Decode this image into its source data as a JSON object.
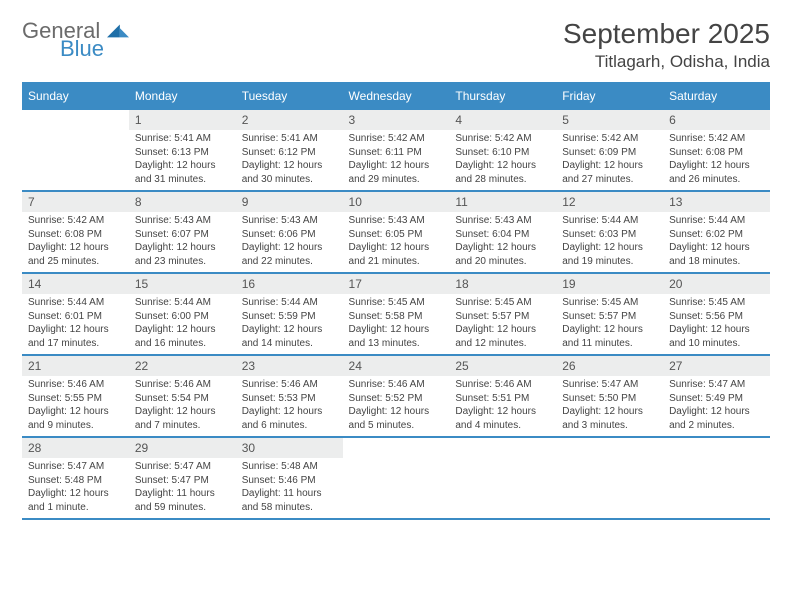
{
  "brand": {
    "line1": "General",
    "line2": "Blue"
  },
  "title": "September 2025",
  "location": "Titlagarh, Odisha, India",
  "colors": {
    "accent": "#3b8bc4",
    "daynum_bg": "#eceded",
    "text": "#444444"
  },
  "weekdays": [
    "Sunday",
    "Monday",
    "Tuesday",
    "Wednesday",
    "Thursday",
    "Friday",
    "Saturday"
  ],
  "weeks": [
    [
      {
        "n": "",
        "sr": "",
        "ss": "",
        "dl": ""
      },
      {
        "n": "1",
        "sr": "Sunrise: 5:41 AM",
        "ss": "Sunset: 6:13 PM",
        "dl": "Daylight: 12 hours and 31 minutes."
      },
      {
        "n": "2",
        "sr": "Sunrise: 5:41 AM",
        "ss": "Sunset: 6:12 PM",
        "dl": "Daylight: 12 hours and 30 minutes."
      },
      {
        "n": "3",
        "sr": "Sunrise: 5:42 AM",
        "ss": "Sunset: 6:11 PM",
        "dl": "Daylight: 12 hours and 29 minutes."
      },
      {
        "n": "4",
        "sr": "Sunrise: 5:42 AM",
        "ss": "Sunset: 6:10 PM",
        "dl": "Daylight: 12 hours and 28 minutes."
      },
      {
        "n": "5",
        "sr": "Sunrise: 5:42 AM",
        "ss": "Sunset: 6:09 PM",
        "dl": "Daylight: 12 hours and 27 minutes."
      },
      {
        "n": "6",
        "sr": "Sunrise: 5:42 AM",
        "ss": "Sunset: 6:08 PM",
        "dl": "Daylight: 12 hours and 26 minutes."
      }
    ],
    [
      {
        "n": "7",
        "sr": "Sunrise: 5:42 AM",
        "ss": "Sunset: 6:08 PM",
        "dl": "Daylight: 12 hours and 25 minutes."
      },
      {
        "n": "8",
        "sr": "Sunrise: 5:43 AM",
        "ss": "Sunset: 6:07 PM",
        "dl": "Daylight: 12 hours and 23 minutes."
      },
      {
        "n": "9",
        "sr": "Sunrise: 5:43 AM",
        "ss": "Sunset: 6:06 PM",
        "dl": "Daylight: 12 hours and 22 minutes."
      },
      {
        "n": "10",
        "sr": "Sunrise: 5:43 AM",
        "ss": "Sunset: 6:05 PM",
        "dl": "Daylight: 12 hours and 21 minutes."
      },
      {
        "n": "11",
        "sr": "Sunrise: 5:43 AM",
        "ss": "Sunset: 6:04 PM",
        "dl": "Daylight: 12 hours and 20 minutes."
      },
      {
        "n": "12",
        "sr": "Sunrise: 5:44 AM",
        "ss": "Sunset: 6:03 PM",
        "dl": "Daylight: 12 hours and 19 minutes."
      },
      {
        "n": "13",
        "sr": "Sunrise: 5:44 AM",
        "ss": "Sunset: 6:02 PM",
        "dl": "Daylight: 12 hours and 18 minutes."
      }
    ],
    [
      {
        "n": "14",
        "sr": "Sunrise: 5:44 AM",
        "ss": "Sunset: 6:01 PM",
        "dl": "Daylight: 12 hours and 17 minutes."
      },
      {
        "n": "15",
        "sr": "Sunrise: 5:44 AM",
        "ss": "Sunset: 6:00 PM",
        "dl": "Daylight: 12 hours and 16 minutes."
      },
      {
        "n": "16",
        "sr": "Sunrise: 5:44 AM",
        "ss": "Sunset: 5:59 PM",
        "dl": "Daylight: 12 hours and 14 minutes."
      },
      {
        "n": "17",
        "sr": "Sunrise: 5:45 AM",
        "ss": "Sunset: 5:58 PM",
        "dl": "Daylight: 12 hours and 13 minutes."
      },
      {
        "n": "18",
        "sr": "Sunrise: 5:45 AM",
        "ss": "Sunset: 5:57 PM",
        "dl": "Daylight: 12 hours and 12 minutes."
      },
      {
        "n": "19",
        "sr": "Sunrise: 5:45 AM",
        "ss": "Sunset: 5:57 PM",
        "dl": "Daylight: 12 hours and 11 minutes."
      },
      {
        "n": "20",
        "sr": "Sunrise: 5:45 AM",
        "ss": "Sunset: 5:56 PM",
        "dl": "Daylight: 12 hours and 10 minutes."
      }
    ],
    [
      {
        "n": "21",
        "sr": "Sunrise: 5:46 AM",
        "ss": "Sunset: 5:55 PM",
        "dl": "Daylight: 12 hours and 9 minutes."
      },
      {
        "n": "22",
        "sr": "Sunrise: 5:46 AM",
        "ss": "Sunset: 5:54 PM",
        "dl": "Daylight: 12 hours and 7 minutes."
      },
      {
        "n": "23",
        "sr": "Sunrise: 5:46 AM",
        "ss": "Sunset: 5:53 PM",
        "dl": "Daylight: 12 hours and 6 minutes."
      },
      {
        "n": "24",
        "sr": "Sunrise: 5:46 AM",
        "ss": "Sunset: 5:52 PM",
        "dl": "Daylight: 12 hours and 5 minutes."
      },
      {
        "n": "25",
        "sr": "Sunrise: 5:46 AM",
        "ss": "Sunset: 5:51 PM",
        "dl": "Daylight: 12 hours and 4 minutes."
      },
      {
        "n": "26",
        "sr": "Sunrise: 5:47 AM",
        "ss": "Sunset: 5:50 PM",
        "dl": "Daylight: 12 hours and 3 minutes."
      },
      {
        "n": "27",
        "sr": "Sunrise: 5:47 AM",
        "ss": "Sunset: 5:49 PM",
        "dl": "Daylight: 12 hours and 2 minutes."
      }
    ],
    [
      {
        "n": "28",
        "sr": "Sunrise: 5:47 AM",
        "ss": "Sunset: 5:48 PM",
        "dl": "Daylight: 12 hours and 1 minute."
      },
      {
        "n": "29",
        "sr": "Sunrise: 5:47 AM",
        "ss": "Sunset: 5:47 PM",
        "dl": "Daylight: 11 hours and 59 minutes."
      },
      {
        "n": "30",
        "sr": "Sunrise: 5:48 AM",
        "ss": "Sunset: 5:46 PM",
        "dl": "Daylight: 11 hours and 58 minutes."
      },
      {
        "n": "",
        "sr": "",
        "ss": "",
        "dl": ""
      },
      {
        "n": "",
        "sr": "",
        "ss": "",
        "dl": ""
      },
      {
        "n": "",
        "sr": "",
        "ss": "",
        "dl": ""
      },
      {
        "n": "",
        "sr": "",
        "ss": "",
        "dl": ""
      }
    ]
  ]
}
